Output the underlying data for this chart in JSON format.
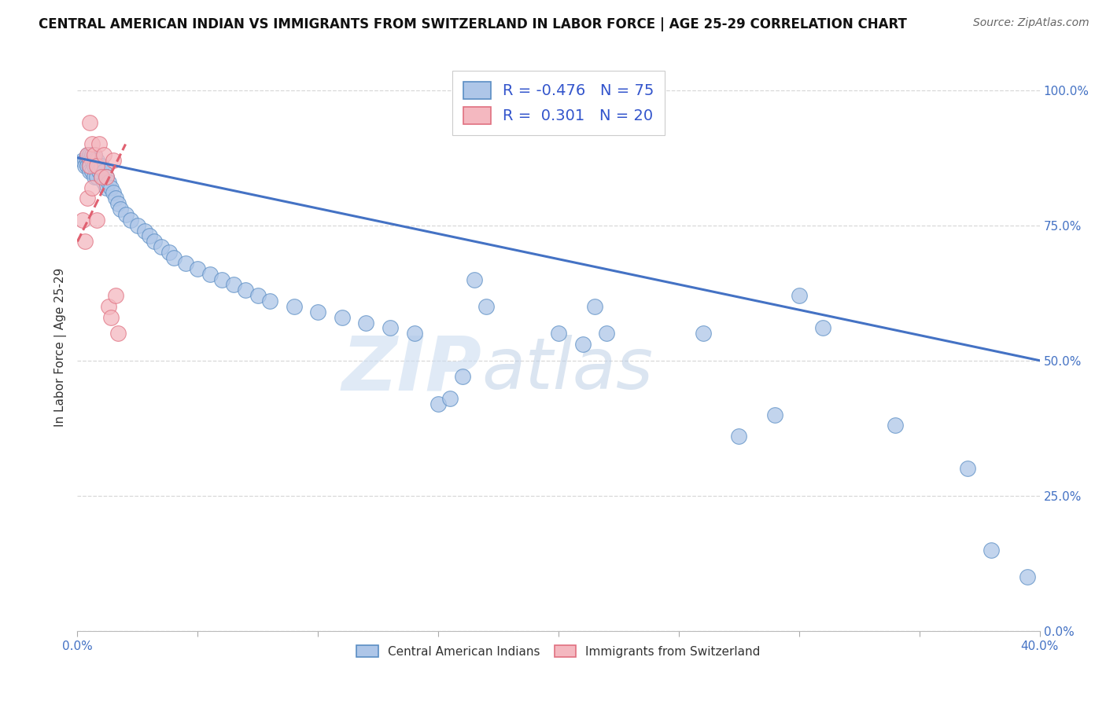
{
  "title": "CENTRAL AMERICAN INDIAN VS IMMIGRANTS FROM SWITZERLAND IN LABOR FORCE | AGE 25-29 CORRELATION CHART",
  "source": "Source: ZipAtlas.com",
  "ylabel": "In Labor Force | Age 25-29",
  "xlim": [
    0.0,
    0.4
  ],
  "ylim": [
    0.0,
    1.05
  ],
  "xticks": [
    0.0,
    0.05,
    0.1,
    0.15,
    0.2,
    0.25,
    0.3,
    0.35,
    0.4
  ],
  "yticks": [
    0.0,
    0.25,
    0.5,
    0.75,
    1.0
  ],
  "ytick_labels": [
    "0.0%",
    "25.0%",
    "50.0%",
    "75.0%",
    "100.0%"
  ],
  "blue_R": -0.476,
  "blue_N": 75,
  "pink_R": 0.301,
  "pink_N": 20,
  "blue_color": "#aec6e8",
  "pink_color": "#f4b8c0",
  "blue_edge_color": "#5b8ec4",
  "pink_edge_color": "#e07080",
  "blue_line_color": "#4472c4",
  "pink_line_color": "#e06070",
  "background_color": "#ffffff",
  "grid_color": "#d8d8d8",
  "blue_scatter_x": [
    0.002,
    0.003,
    0.003,
    0.004,
    0.004,
    0.004,
    0.005,
    0.005,
    0.005,
    0.005,
    0.006,
    0.006,
    0.006,
    0.007,
    0.007,
    0.007,
    0.007,
    0.008,
    0.008,
    0.008,
    0.009,
    0.009,
    0.01,
    0.01,
    0.011,
    0.011,
    0.012,
    0.012,
    0.013,
    0.014,
    0.015,
    0.016,
    0.017,
    0.018,
    0.02,
    0.022,
    0.025,
    0.028,
    0.03,
    0.032,
    0.035,
    0.038,
    0.04,
    0.045,
    0.05,
    0.055,
    0.06,
    0.065,
    0.07,
    0.075,
    0.08,
    0.09,
    0.1,
    0.11,
    0.12,
    0.13,
    0.14,
    0.15,
    0.155,
    0.16,
    0.165,
    0.17,
    0.2,
    0.21,
    0.215,
    0.22,
    0.26,
    0.275,
    0.29,
    0.3,
    0.31,
    0.34,
    0.37,
    0.38,
    0.395
  ],
  "blue_scatter_y": [
    0.87,
    0.87,
    0.86,
    0.88,
    0.87,
    0.86,
    0.88,
    0.87,
    0.86,
    0.85,
    0.88,
    0.87,
    0.85,
    0.88,
    0.87,
    0.86,
    0.84,
    0.87,
    0.86,
    0.84,
    0.86,
    0.85,
    0.86,
    0.84,
    0.85,
    0.83,
    0.84,
    0.82,
    0.83,
    0.82,
    0.81,
    0.8,
    0.79,
    0.78,
    0.77,
    0.76,
    0.75,
    0.74,
    0.73,
    0.72,
    0.71,
    0.7,
    0.69,
    0.68,
    0.67,
    0.66,
    0.65,
    0.64,
    0.63,
    0.62,
    0.61,
    0.6,
    0.59,
    0.58,
    0.57,
    0.56,
    0.55,
    0.42,
    0.43,
    0.47,
    0.65,
    0.6,
    0.55,
    0.53,
    0.6,
    0.55,
    0.55,
    0.36,
    0.4,
    0.62,
    0.56,
    0.38,
    0.3,
    0.15,
    0.1
  ],
  "pink_scatter_x": [
    0.002,
    0.003,
    0.004,
    0.004,
    0.005,
    0.005,
    0.006,
    0.006,
    0.007,
    0.008,
    0.008,
    0.009,
    0.01,
    0.011,
    0.012,
    0.013,
    0.014,
    0.015,
    0.016,
    0.017
  ],
  "pink_scatter_y": [
    0.76,
    0.72,
    0.88,
    0.8,
    0.94,
    0.86,
    0.9,
    0.82,
    0.88,
    0.86,
    0.76,
    0.9,
    0.84,
    0.88,
    0.84,
    0.6,
    0.58,
    0.87,
    0.62,
    0.55
  ],
  "blue_trend_x": [
    0.0,
    0.4
  ],
  "blue_trend_y": [
    0.875,
    0.5
  ],
  "pink_trend_x": [
    0.0,
    0.02
  ],
  "pink_trend_y": [
    0.72,
    0.9
  ],
  "watermark_zip": "ZIP",
  "watermark_atlas": "atlas",
  "title_fontsize": 12,
  "axis_label_fontsize": 11,
  "tick_fontsize": 11,
  "legend_fontsize": 14
}
